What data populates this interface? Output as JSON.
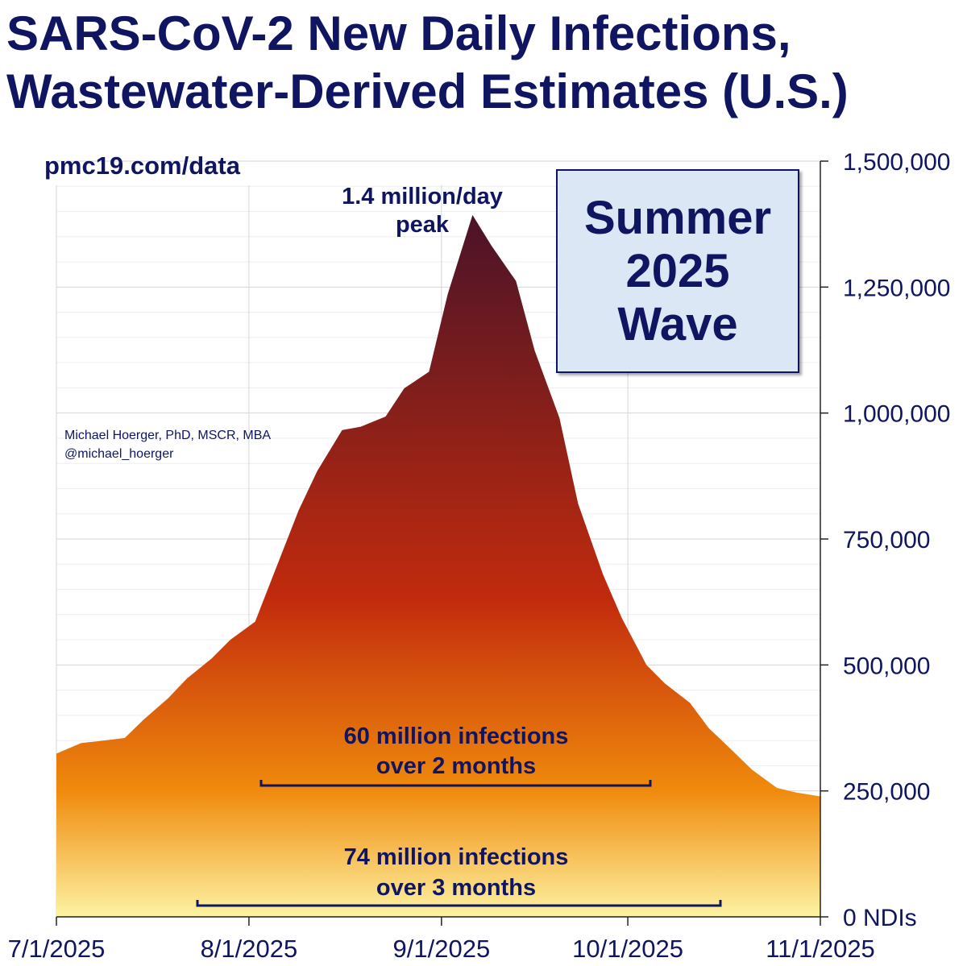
{
  "title_lines": [
    "SARS-CoV-2 New Daily Infections,",
    "Wastewater-Derived Estimates (U.S.)"
  ],
  "source": "pmc19.com/data",
  "credit": [
    "Michael Hoerger, PhD, MSCR, MBA",
    "@michael_hoerger"
  ],
  "wave_box": [
    "Summer",
    "2025",
    "Wave"
  ],
  "colors": {
    "text": "#0f1560",
    "gradient_top": "#4a1328",
    "gradient_mid": "#c22b0d",
    "gradient_low": "#f08a0c",
    "gradient_bottom": "#fdf3a3"
  },
  "chart_data": {
    "type": "area",
    "ylabel": "NDIs",
    "ylim": [
      0,
      1500000
    ],
    "yticks": [
      0,
      250000,
      500000,
      750000,
      1000000,
      1250000,
      1500000
    ],
    "ytick_labels": [
      "0",
      "250,000",
      "500,000",
      "750,000",
      "1,000,000",
      "1,250,000",
      "1,500,000"
    ],
    "xlim": [
      "2025-07-01",
      "2025-11-01"
    ],
    "xticks": [
      "2025-07-01",
      "2025-08-01",
      "2025-09-01",
      "2025-10-01",
      "2025-11-01"
    ],
    "xtick_labels": [
      "7/1/2025",
      "8/1/2025",
      "9/1/2025",
      "10/1/2025",
      "11/1/2025"
    ],
    "grid": true,
    "series": [
      {
        "x": [
          "2025-07-01",
          "2025-07-05",
          "2025-07-08",
          "2025-07-12",
          "2025-07-15",
          "2025-07-19",
          "2025-07-22",
          "2025-07-26",
          "2025-07-29",
          "2025-08-02",
          "2025-08-05",
          "2025-08-09",
          "2025-08-12",
          "2025-08-16",
          "2025-08-19",
          "2025-08-23",
          "2025-08-26",
          "2025-08-30",
          "2025-09-02",
          "2025-09-06",
          "2025-09-09",
          "2025-09-13",
          "2025-09-16",
          "2025-09-20",
          "2025-09-23",
          "2025-09-27",
          "2025-09-30",
          "2025-10-04",
          "2025-10-07",
          "2025-10-11",
          "2025-10-14",
          "2025-10-18",
          "2025-10-21",
          "2025-10-25",
          "2025-10-28",
          "2025-11-01"
        ],
        "y": [
          324000,
          345000,
          349000,
          355000,
          391000,
          434000,
          473000,
          513000,
          550000,
          586000,
          681000,
          807000,
          885000,
          966000,
          973000,
          993000,
          1049000,
          1082000,
          1236000,
          1393000,
          1333000,
          1262000,
          1124000,
          990000,
          820000,
          680000,
          594000,
          500000,
          463000,
          425000,
          375000,
          328000,
          292000,
          256000,
          247000,
          239000
        ]
      }
    ],
    "annotations": {
      "peak": [
        "1.4 million/day",
        "peak"
      ],
      "two_months": [
        "60 million infections",
        "over 2 months"
      ],
      "three_months": [
        "74 million infections",
        "over 3 months"
      ]
    }
  }
}
